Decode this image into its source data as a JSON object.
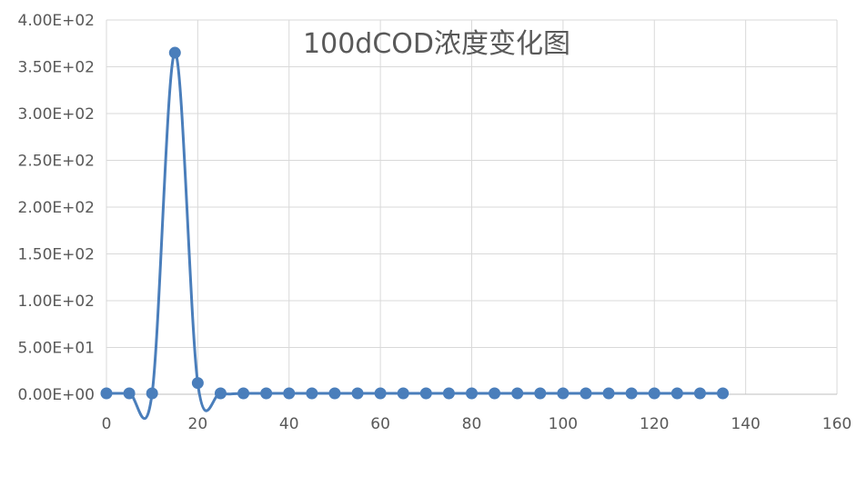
{
  "chart_data": {
    "type": "line",
    "title": "100dCOD浓度变化图",
    "xlabel": "",
    "ylabel": "",
    "xlim": [
      0,
      160
    ],
    "ylim": [
      0,
      400
    ],
    "x_ticks": [
      0,
      20,
      40,
      60,
      80,
      100,
      120,
      140,
      160
    ],
    "x_tick_labels": [
      "0",
      "20",
      "40",
      "60",
      "80",
      "100",
      "120",
      "140",
      "160"
    ],
    "y_ticks": [
      0,
      50,
      100,
      150,
      200,
      250,
      300,
      350,
      400
    ],
    "y_tick_labels": [
      "0.00E+00",
      "5.00E+01",
      "1.00E+02",
      "1.50E+02",
      "2.00E+02",
      "2.50E+02",
      "3.00E+02",
      "3.50E+02",
      "4.00E+02"
    ],
    "grid": true,
    "legend": "none",
    "smooth": true,
    "color": "#4a7ebb",
    "x": [
      0,
      5,
      10,
      15,
      20,
      25,
      30,
      35,
      40,
      45,
      50,
      55,
      60,
      65,
      70,
      75,
      80,
      85,
      90,
      95,
      100,
      105,
      110,
      115,
      120,
      125,
      130,
      135
    ],
    "y": [
      1,
      1,
      1,
      365,
      12,
      1,
      1,
      1,
      1,
      1,
      1,
      1,
      1,
      1,
      1,
      1,
      1,
      1,
      1,
      1,
      1,
      1,
      1,
      1,
      1,
      1,
      1,
      1
    ]
  }
}
